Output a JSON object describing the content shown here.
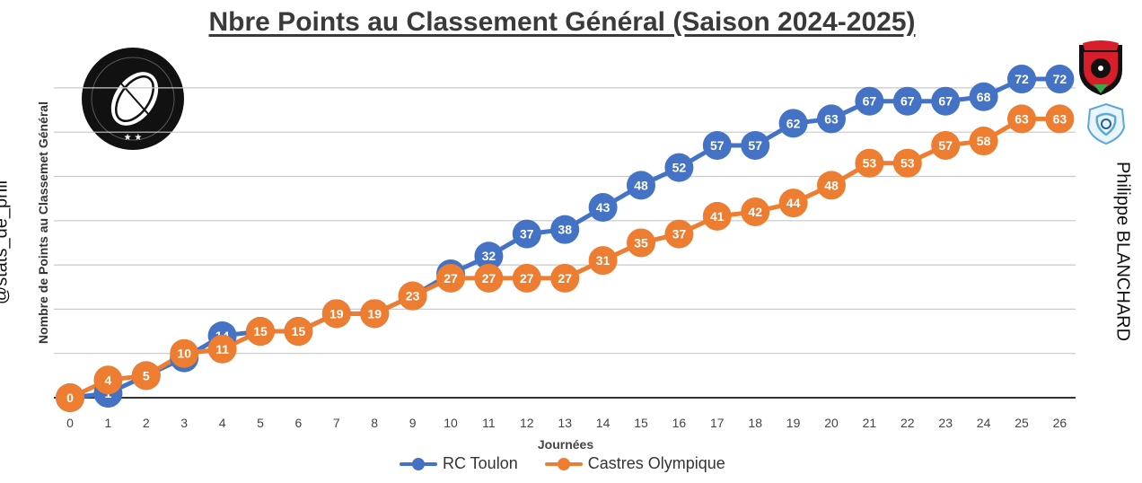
{
  "chart_data": {
    "type": "line",
    "title": "Nbre Points au Classement Général (Saison 2024-2025)",
    "xlabel": "Journées",
    "ylabel": "Nombre de Points au Classemet Général",
    "categories": [
      "0",
      "1",
      "2",
      "3",
      "4",
      "5",
      "6",
      "7",
      "8",
      "9",
      "10",
      "11",
      "12",
      "13",
      "14",
      "15",
      "16",
      "17",
      "18",
      "19",
      "20",
      "21",
      "22",
      "23",
      "24",
      "25",
      "26"
    ],
    "ylim": [
      0,
      70
    ],
    "grid": true,
    "legend_position": "bottom",
    "series": [
      {
        "name": "RC Toulon",
        "color": "#4472c4",
        "values": [
          0,
          1,
          5,
          9,
          14,
          15,
          15,
          19,
          19,
          23,
          28,
          32,
          37,
          38,
          43,
          48,
          52,
          57,
          57,
          62,
          63,
          67,
          67,
          67,
          68,
          72,
          72
        ]
      },
      {
        "name": "Castres Olympique",
        "color": "#ed7d31",
        "values": [
          0,
          4,
          5,
          10,
          11,
          15,
          15,
          19,
          19,
          23,
          27,
          27,
          27,
          27,
          31,
          35,
          37,
          41,
          42,
          44,
          48,
          53,
          53,
          57,
          58,
          63,
          63
        ]
      }
    ]
  },
  "watermark_left": "@stats_de_phil",
  "watermark_right": "Philippe BLANCHARD",
  "logo_text": "STATS DE PHIL",
  "team_logos": {
    "toulon": "TOULON",
    "castres": "CASTRES OLYMPIQUE"
  }
}
